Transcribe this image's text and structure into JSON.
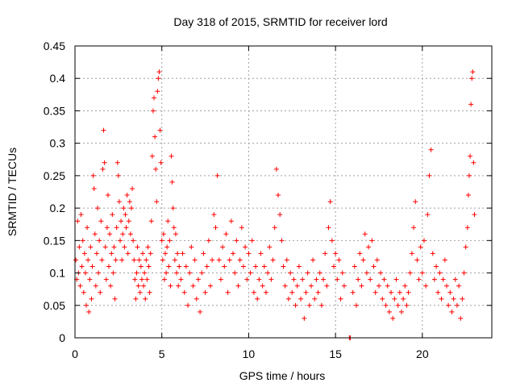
{
  "chart_data": {
    "type": "scatter",
    "title": "Day 318 of 2015, SRMTID for receiver lord",
    "xlabel": "GPS time / hours",
    "ylabel": "SRMTID / TECUs",
    "xlim": [
      0,
      24
    ],
    "ylim": [
      0,
      0.45
    ],
    "xticks": [
      0,
      5,
      10,
      15,
      20
    ],
    "yticks": [
      0,
      0.05,
      0.1,
      0.15,
      0.2,
      0.25,
      0.3,
      0.35,
      0.4,
      0.45
    ],
    "xtick_labels": [
      "0",
      "5",
      "10",
      "15",
      "20"
    ],
    "ytick_labels": [
      "0",
      "0.05",
      "0.1",
      "0.15",
      "0.2",
      "0.25",
      "0.3",
      "0.35",
      "0.4",
      "0.45"
    ],
    "grid": true,
    "marker": "+",
    "color": "#ff0000",
    "series": [
      {
        "name": "SRMTID",
        "points": [
          [
            0.05,
            0.12
          ],
          [
            0.1,
            0.09
          ],
          [
            0.15,
            0.18
          ],
          [
            0.2,
            0.1
          ],
          [
            0.25,
            0.14
          ],
          [
            0.3,
            0.08
          ],
          [
            0.35,
            0.19
          ],
          [
            0.4,
            0.11
          ],
          [
            0.45,
            0.15
          ],
          [
            0.5,
            0.07
          ],
          [
            0.55,
            0.13
          ],
          [
            0.6,
            0.1
          ],
          [
            0.65,
            0.05
          ],
          [
            0.7,
            0.17
          ],
          [
            0.75,
            0.12
          ],
          [
            0.8,
            0.04
          ],
          [
            0.85,
            0.09
          ],
          [
            0.9,
            0.14
          ],
          [
            0.95,
            0.06
          ],
          [
            1.0,
            0.11
          ],
          [
            1.05,
            0.25
          ],
          [
            1.1,
            0.23
          ],
          [
            1.15,
            0.16
          ],
          [
            1.2,
            0.08
          ],
          [
            1.25,
            0.13
          ],
          [
            1.3,
            0.2
          ],
          [
            1.35,
            0.1
          ],
          [
            1.4,
            0.15
          ],
          [
            1.45,
            0.07
          ],
          [
            1.5,
            0.18
          ],
          [
            1.55,
            0.12
          ],
          [
            1.6,
            0.26
          ],
          [
            1.65,
            0.32
          ],
          [
            1.7,
            0.27
          ],
          [
            1.75,
            0.14
          ],
          [
            1.8,
            0.09
          ],
          [
            1.85,
            0.17
          ],
          [
            1.9,
            0.22
          ],
          [
            1.95,
            0.11
          ],
          [
            2.0,
            0.16
          ],
          [
            2.05,
            0.08
          ],
          [
            2.1,
            0.13
          ],
          [
            2.15,
            0.19
          ],
          [
            2.2,
            0.1
          ],
          [
            2.25,
            0.14
          ],
          [
            2.3,
            0.06
          ],
          [
            2.35,
            0.12
          ],
          [
            2.4,
            0.17
          ],
          [
            2.45,
            0.27
          ],
          [
            2.5,
            0.25
          ],
          [
            2.55,
            0.21
          ],
          [
            2.6,
            0.15
          ],
          [
            2.65,
            0.18
          ],
          [
            2.7,
            0.12
          ],
          [
            2.75,
            0.16
          ],
          [
            2.8,
            0.2
          ],
          [
            2.85,
            0.14
          ],
          [
            2.9,
            0.19
          ],
          [
            2.95,
            0.17
          ],
          [
            3.0,
            0.22
          ],
          [
            3.05,
            0.13
          ],
          [
            3.1,
            0.18
          ],
          [
            3.15,
            0.21
          ],
          [
            3.2,
            0.16
          ],
          [
            3.25,
            0.2
          ],
          [
            3.3,
            0.23
          ],
          [
            3.35,
            0.15
          ],
          [
            3.4,
            0.12
          ],
          [
            3.45,
            0.09
          ],
          [
            3.5,
            0.06
          ],
          [
            3.55,
            0.1
          ],
          [
            3.6,
            0.14
          ],
          [
            3.65,
            0.08
          ],
          [
            3.7,
            0.12
          ],
          [
            3.75,
            0.07
          ],
          [
            3.8,
            0.11
          ],
          [
            3.85,
            0.09
          ],
          [
            3.9,
            0.13
          ],
          [
            3.95,
            0.08
          ],
          [
            4.0,
            0.1
          ],
          [
            4.05,
            0.06
          ],
          [
            4.1,
            0.12
          ],
          [
            4.15,
            0.09
          ],
          [
            4.2,
            0.14
          ],
          [
            4.25,
            0.11
          ],
          [
            4.3,
            0.07
          ],
          [
            4.35,
            0.13
          ],
          [
            4.4,
            0.18
          ],
          [
            4.45,
            0.28
          ],
          [
            4.5,
            0.35
          ],
          [
            4.55,
            0.37
          ],
          [
            4.6,
            0.31
          ],
          [
            4.65,
            0.26
          ],
          [
            4.7,
            0.21
          ],
          [
            4.75,
            0.38
          ],
          [
            4.8,
            0.4
          ],
          [
            4.85,
            0.41
          ],
          [
            4.9,
            0.32
          ],
          [
            4.95,
            0.27
          ],
          [
            5.0,
            0.15
          ],
          [
            5.05,
            0.12
          ],
          [
            5.1,
            0.16
          ],
          [
            5.15,
            0.09
          ],
          [
            5.2,
            0.13
          ],
          [
            5.25,
            0.1
          ],
          [
            5.3,
            0.14
          ],
          [
            5.35,
            0.18
          ],
          [
            5.4,
            0.11
          ],
          [
            5.45,
            0.15
          ],
          [
            5.5,
            0.08
          ],
          [
            5.55,
            0.28
          ],
          [
            5.6,
            0.24
          ],
          [
            5.65,
            0.2
          ],
          [
            5.7,
            0.17
          ],
          [
            5.75,
            0.12
          ],
          [
            5.8,
            0.16
          ],
          [
            5.85,
            0.1
          ],
          [
            5.9,
            0.13
          ],
          [
            5.95,
            0.08
          ],
          [
            6.0,
            0.11
          ],
          [
            6.1,
            0.09
          ],
          [
            6.2,
            0.13
          ],
          [
            6.3,
            0.07
          ],
          [
            6.4,
            0.11
          ],
          [
            6.5,
            0.05
          ],
          [
            6.6,
            0.1
          ],
          [
            6.7,
            0.14
          ],
          [
            6.8,
            0.08
          ],
          [
            6.9,
            0.12
          ],
          [
            7.0,
            0.06
          ],
          [
            7.1,
            0.09
          ],
          [
            7.2,
            0.04
          ],
          [
            7.3,
            0.1
          ],
          [
            7.4,
            0.13
          ],
          [
            7.5,
            0.07
          ],
          [
            7.6,
            0.11
          ],
          [
            7.7,
            0.15
          ],
          [
            7.8,
            0.08
          ],
          [
            7.9,
            0.12
          ],
          [
            8.0,
            0.19
          ],
          [
            8.1,
            0.17
          ],
          [
            8.2,
            0.25
          ],
          [
            8.3,
            0.12
          ],
          [
            8.4,
            0.09
          ],
          [
            8.5,
            0.14
          ],
          [
            8.6,
            0.11
          ],
          [
            8.7,
            0.16
          ],
          [
            8.8,
            0.07
          ],
          [
            8.9,
            0.12
          ],
          [
            9.0,
            0.18
          ],
          [
            9.1,
            0.13
          ],
          [
            9.2,
            0.1
          ],
          [
            9.3,
            0.15
          ],
          [
            9.4,
            0.08
          ],
          [
            9.5,
            0.12
          ],
          [
            9.6,
            0.17
          ],
          [
            9.7,
            0.11
          ],
          [
            9.8,
            0.14
          ],
          [
            9.9,
            0.09
          ],
          [
            10.0,
            0.13
          ],
          [
            10.1,
            0.1
          ],
          [
            10.2,
            0.15
          ],
          [
            10.3,
            0.07
          ],
          [
            10.4,
            0.11
          ],
          [
            10.5,
            0.06
          ],
          [
            10.6,
            0.09
          ],
          [
            10.7,
            0.13
          ],
          [
            10.8,
            0.08
          ],
          [
            10.9,
            0.11
          ],
          [
            11.0,
            0.07
          ],
          [
            11.1,
            0.1
          ],
          [
            11.2,
            0.14
          ],
          [
            11.3,
            0.09
          ],
          [
            11.4,
            0.12
          ],
          [
            11.5,
            0.17
          ],
          [
            11.6,
            0.26
          ],
          [
            11.7,
            0.22
          ],
          [
            11.8,
            0.19
          ],
          [
            11.9,
            0.15
          ],
          [
            12.0,
            0.11
          ],
          [
            12.1,
            0.08
          ],
          [
            12.2,
            0.12
          ],
          [
            12.3,
            0.06
          ],
          [
            12.4,
            0.1
          ],
          [
            12.5,
            0.07
          ],
          [
            12.6,
            0.09
          ],
          [
            12.7,
            0.05
          ],
          [
            12.8,
            0.08
          ],
          [
            12.9,
            0.11
          ],
          [
            13.0,
            0.06
          ],
          [
            13.1,
            0.09
          ],
          [
            13.2,
            0.03
          ],
          [
            13.3,
            0.07
          ],
          [
            13.4,
            0.1
          ],
          [
            13.5,
            0.05
          ],
          [
            13.6,
            0.08
          ],
          [
            13.7,
            0.12
          ],
          [
            13.8,
            0.06
          ],
          [
            13.9,
            0.09
          ],
          [
            14.0,
            0.07
          ],
          [
            14.1,
            0.1
          ],
          [
            14.2,
            0.05
          ],
          [
            14.3,
            0.09
          ],
          [
            14.4,
            0.13
          ],
          [
            14.5,
            0.08
          ],
          [
            14.6,
            0.17
          ],
          [
            14.7,
            0.21
          ],
          [
            14.8,
            0.15
          ],
          [
            14.9,
            0.11
          ],
          [
            15.0,
            0.13
          ],
          [
            15.1,
            0.09
          ],
          [
            15.2,
            0.12
          ],
          [
            15.3,
            0.06
          ],
          [
            15.4,
            0.1
          ],
          [
            15.5,
            0.08
          ],
          [
            15.8,
            0.0
          ],
          [
            15.85,
            0.0
          ],
          [
            16.0,
            0.07
          ],
          [
            16.1,
            0.11
          ],
          [
            16.2,
            0.05
          ],
          [
            16.3,
            0.09
          ],
          [
            16.4,
            0.13
          ],
          [
            16.5,
            0.08
          ],
          [
            16.6,
            0.12
          ],
          [
            16.7,
            0.16
          ],
          [
            16.8,
            0.1
          ],
          [
            16.9,
            0.14
          ],
          [
            17.0,
            0.09
          ],
          [
            17.1,
            0.15
          ],
          [
            17.2,
            0.11
          ],
          [
            17.3,
            0.07
          ],
          [
            17.4,
            0.12
          ],
          [
            17.5,
            0.08
          ],
          [
            17.6,
            0.1
          ],
          [
            17.7,
            0.06
          ],
          [
            17.8,
            0.09
          ],
          [
            17.9,
            0.05
          ],
          [
            18.0,
            0.08
          ],
          [
            18.1,
            0.04
          ],
          [
            18.2,
            0.07
          ],
          [
            18.3,
            0.03
          ],
          [
            18.4,
            0.06
          ],
          [
            18.5,
            0.09
          ],
          [
            18.6,
            0.05
          ],
          [
            18.7,
            0.07
          ],
          [
            18.8,
            0.04
          ],
          [
            18.9,
            0.06
          ],
          [
            19.0,
            0.08
          ],
          [
            19.1,
            0.05
          ],
          [
            19.2,
            0.07
          ],
          [
            19.3,
            0.1
          ],
          [
            19.4,
            0.13
          ],
          [
            19.5,
            0.17
          ],
          [
            19.6,
            0.21
          ],
          [
            19.7,
            0.12
          ],
          [
            19.8,
            0.09
          ],
          [
            19.9,
            0.14
          ],
          [
            20.0,
            0.1
          ],
          [
            20.1,
            0.15
          ],
          [
            20.2,
            0.08
          ],
          [
            20.3,
            0.19
          ],
          [
            20.4,
            0.25
          ],
          [
            20.5,
            0.29
          ],
          [
            20.6,
            0.13
          ],
          [
            20.7,
            0.09
          ],
          [
            20.8,
            0.11
          ],
          [
            20.9,
            0.07
          ],
          [
            21.0,
            0.1
          ],
          [
            21.1,
            0.06
          ],
          [
            21.2,
            0.09
          ],
          [
            21.3,
            0.12
          ],
          [
            21.4,
            0.08
          ],
          [
            21.5,
            0.05
          ],
          [
            21.6,
            0.07
          ],
          [
            21.7,
            0.04
          ],
          [
            21.8,
            0.06
          ],
          [
            21.9,
            0.09
          ],
          [
            22.0,
            0.05
          ],
          [
            22.1,
            0.08
          ],
          [
            22.2,
            0.03
          ],
          [
            22.3,
            0.06
          ],
          [
            22.4,
            0.1
          ],
          [
            22.5,
            0.14
          ],
          [
            22.6,
            0.17
          ],
          [
            22.65,
            0.22
          ],
          [
            22.7,
            0.25
          ],
          [
            22.75,
            0.28
          ],
          [
            22.8,
            0.36
          ],
          [
            22.85,
            0.4
          ],
          [
            22.9,
            0.41
          ],
          [
            22.95,
            0.27
          ],
          [
            23.0,
            0.19
          ]
        ]
      }
    ]
  }
}
